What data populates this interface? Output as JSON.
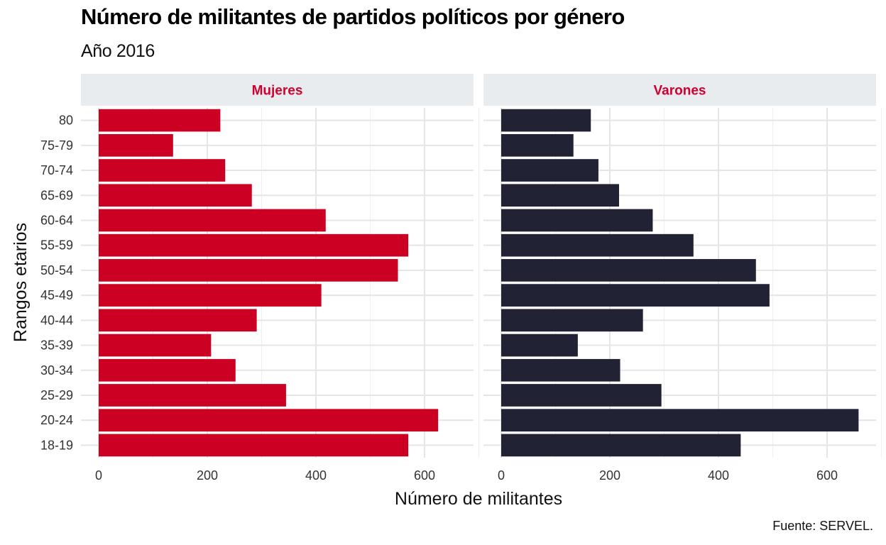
{
  "title": "Número de militantes de partidos políticos por género",
  "subtitle": "Año 2016",
  "caption": "Fuente: SERVEL.",
  "colors": {
    "Mujeres": "#cc0022",
    "Varones": "#212234",
    "strip_bg": "#e8ecef",
    "strip_text": "#d1002f",
    "grid": "#e5e5e5"
  },
  "chart_data": {
    "type": "bar",
    "orientation": "horizontal",
    "xlabel": "Número de militantes",
    "ylabel": "Rangos etarios",
    "xlim": [
      0,
      700
    ],
    "xticks": [
      0,
      200,
      400,
      600
    ],
    "grid": true,
    "categories": [
      "18-19",
      "20-24",
      "25-29",
      "30-34",
      "35-39",
      "40-44",
      "45-49",
      "50-54",
      "55-59",
      "60-64",
      "65-69",
      "70-74",
      "75-79",
      "80"
    ],
    "panels": [
      {
        "name": "Mujeres",
        "values": [
          570,
          625,
          345,
          252,
          207,
          291,
          410,
          551,
          570,
          418,
          282,
          233,
          137,
          224
        ]
      },
      {
        "name": "Varones",
        "values": [
          441,
          658,
          295,
          219,
          141,
          261,
          494,
          469,
          354,
          279,
          217,
          179,
          133,
          165
        ]
      }
    ]
  }
}
